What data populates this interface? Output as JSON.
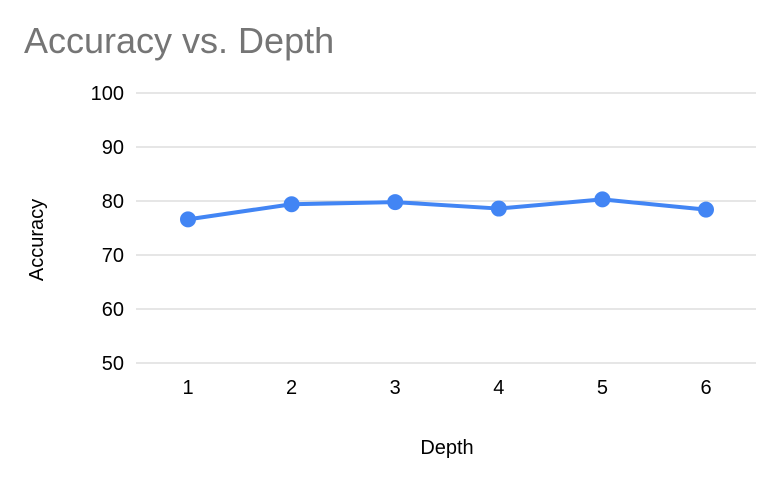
{
  "chart_data": {
    "type": "line",
    "title": "Accuracy vs. Depth",
    "xlabel": "Depth",
    "ylabel": "Accuracy",
    "categories": [
      "1",
      "2",
      "3",
      "4",
      "5",
      "6"
    ],
    "series": [
      {
        "values": [
          76.6,
          79.4,
          79.8,
          78.6,
          80.3,
          78.4
        ]
      }
    ],
    "yticks": [
      50,
      60,
      70,
      80,
      90,
      100
    ],
    "ylim": [
      50,
      100
    ],
    "grid": true,
    "legend": "none",
    "colors": {
      "line": "#4285f4",
      "grid": "#cccccc",
      "title": "#757575",
      "text": "#000000"
    }
  }
}
